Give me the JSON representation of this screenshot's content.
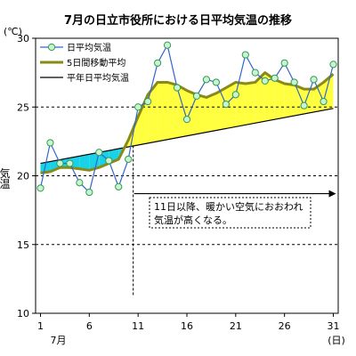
{
  "chart_data": {
    "type": "line",
    "title": "7月の日立市役所における日平均気温の推移",
    "unit": "(℃)",
    "ylabel": "気温",
    "xlabel_month": "7月",
    "xlabel_unit": "(日)",
    "ylim": [
      10,
      30
    ],
    "xlim": [
      1,
      31
    ],
    "y_ticks": [
      10,
      15,
      20,
      25,
      30
    ],
    "x_ticks": [
      1,
      6,
      11,
      16,
      21,
      26,
      31
    ],
    "dashed_gridlines_y": [
      15,
      20,
      25
    ],
    "series": [
      {
        "name": "日平均気温",
        "x": [
          1,
          2,
          3,
          4,
          5,
          6,
          7,
          8,
          9,
          10,
          11,
          12,
          13,
          14,
          15,
          16,
          17,
          18,
          19,
          20,
          21,
          22,
          23,
          24,
          25,
          26,
          27,
          28,
          29,
          30,
          31
        ],
        "values": [
          19.1,
          22.4,
          20.9,
          20.9,
          19.5,
          18.8,
          21.7,
          21.1,
          19.2,
          21.2,
          25.0,
          25.4,
          28.2,
          29.5,
          26.4,
          24.1,
          25.8,
          27.0,
          26.8,
          25.2,
          25.9,
          28.8,
          27.5,
          26.9,
          27.1,
          28.2,
          26.8,
          25.1,
          27.0,
          25.4,
          28.1
        ]
      },
      {
        "name": "5日間移動平均",
        "x": [
          1,
          2,
          3,
          4,
          5,
          6,
          7,
          8,
          9,
          10,
          11,
          12,
          13,
          14,
          15,
          16,
          17,
          18,
          19,
          20,
          21,
          22,
          23,
          24,
          25,
          26,
          27,
          28,
          29,
          30,
          31
        ],
        "values": [
          20.2,
          20.3,
          20.6,
          20.6,
          20.5,
          20.4,
          20.6,
          20.9,
          21.2,
          22.6,
          24.3,
          25.9,
          26.8,
          26.8,
          26.6,
          26.2,
          25.9,
          25.7,
          26.0,
          26.4,
          26.8,
          26.7,
          26.8,
          27.5,
          27.0,
          26.7,
          26.6,
          26.3,
          26.3,
          26.8,
          27.4
        ]
      },
      {
        "name": "平年日平均気温",
        "x": [
          1,
          31
        ],
        "values": [
          20.9,
          24.9
        ]
      }
    ],
    "colors": {
      "daily_line": "#3366cc",
      "daily_marker_fill": "#c8f5d0",
      "daily_marker_stroke": "#339955",
      "moving_avg": "#8a8a16",
      "normal": "#000000",
      "below_fill": "#1ad2e8",
      "above_fill": "#ffff40"
    },
    "annotation": {
      "lines": [
        "11日以降、暖かい空気におおわれ",
        "気温が高くなる。"
      ],
      "arrow_from_day": 10,
      "arrow_to_day": 31
    }
  }
}
